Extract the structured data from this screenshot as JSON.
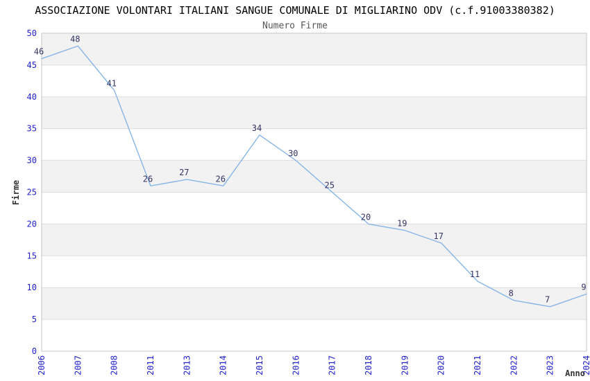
{
  "header": {
    "title": "ASSOCIAZIONE VOLONTARI ITALIANI SANGUE COMUNALE DI MIGLIARINO ODV (c.f.91003380382)",
    "subtitle": "Numero Firme"
  },
  "chart_data": {
    "type": "line",
    "title": "ASSOCIAZIONE VOLONTARI ITALIANI SANGUE COMUNALE DI MIGLIARINO ODV (c.f.91003380382)",
    "subtitle": "Numero Firme",
    "xlabel": "Anno",
    "ylabel": "Firme",
    "categories": [
      "2006",
      "2007",
      "2008",
      "2011",
      "2013",
      "2014",
      "2015",
      "2016",
      "2017",
      "2018",
      "2019",
      "2020",
      "2021",
      "2022",
      "2023",
      "2024"
    ],
    "values": [
      46,
      48,
      41,
      26,
      27,
      26,
      34,
      30,
      25,
      20,
      19,
      17,
      11,
      8,
      7,
      9
    ],
    "ylim": [
      0,
      50
    ],
    "yticks": [
      0,
      5,
      10,
      15,
      20,
      25,
      30,
      35,
      40,
      45,
      50
    ],
    "grid": true,
    "alternating_bands": true,
    "legend_position": "none",
    "data_labels_shown": true,
    "colors": {
      "line": "#85b5e8",
      "data_label": "#333366",
      "tick_label": "#2222cc",
      "band": "#f2f2f2",
      "band_alt": "#ffffff",
      "gridline": "#dcdcdc",
      "plot_border": "#c6c6c6",
      "title": "#000000",
      "subtitle": "#555555",
      "axis_title": "#333333",
      "background": "#ffffff"
    }
  }
}
